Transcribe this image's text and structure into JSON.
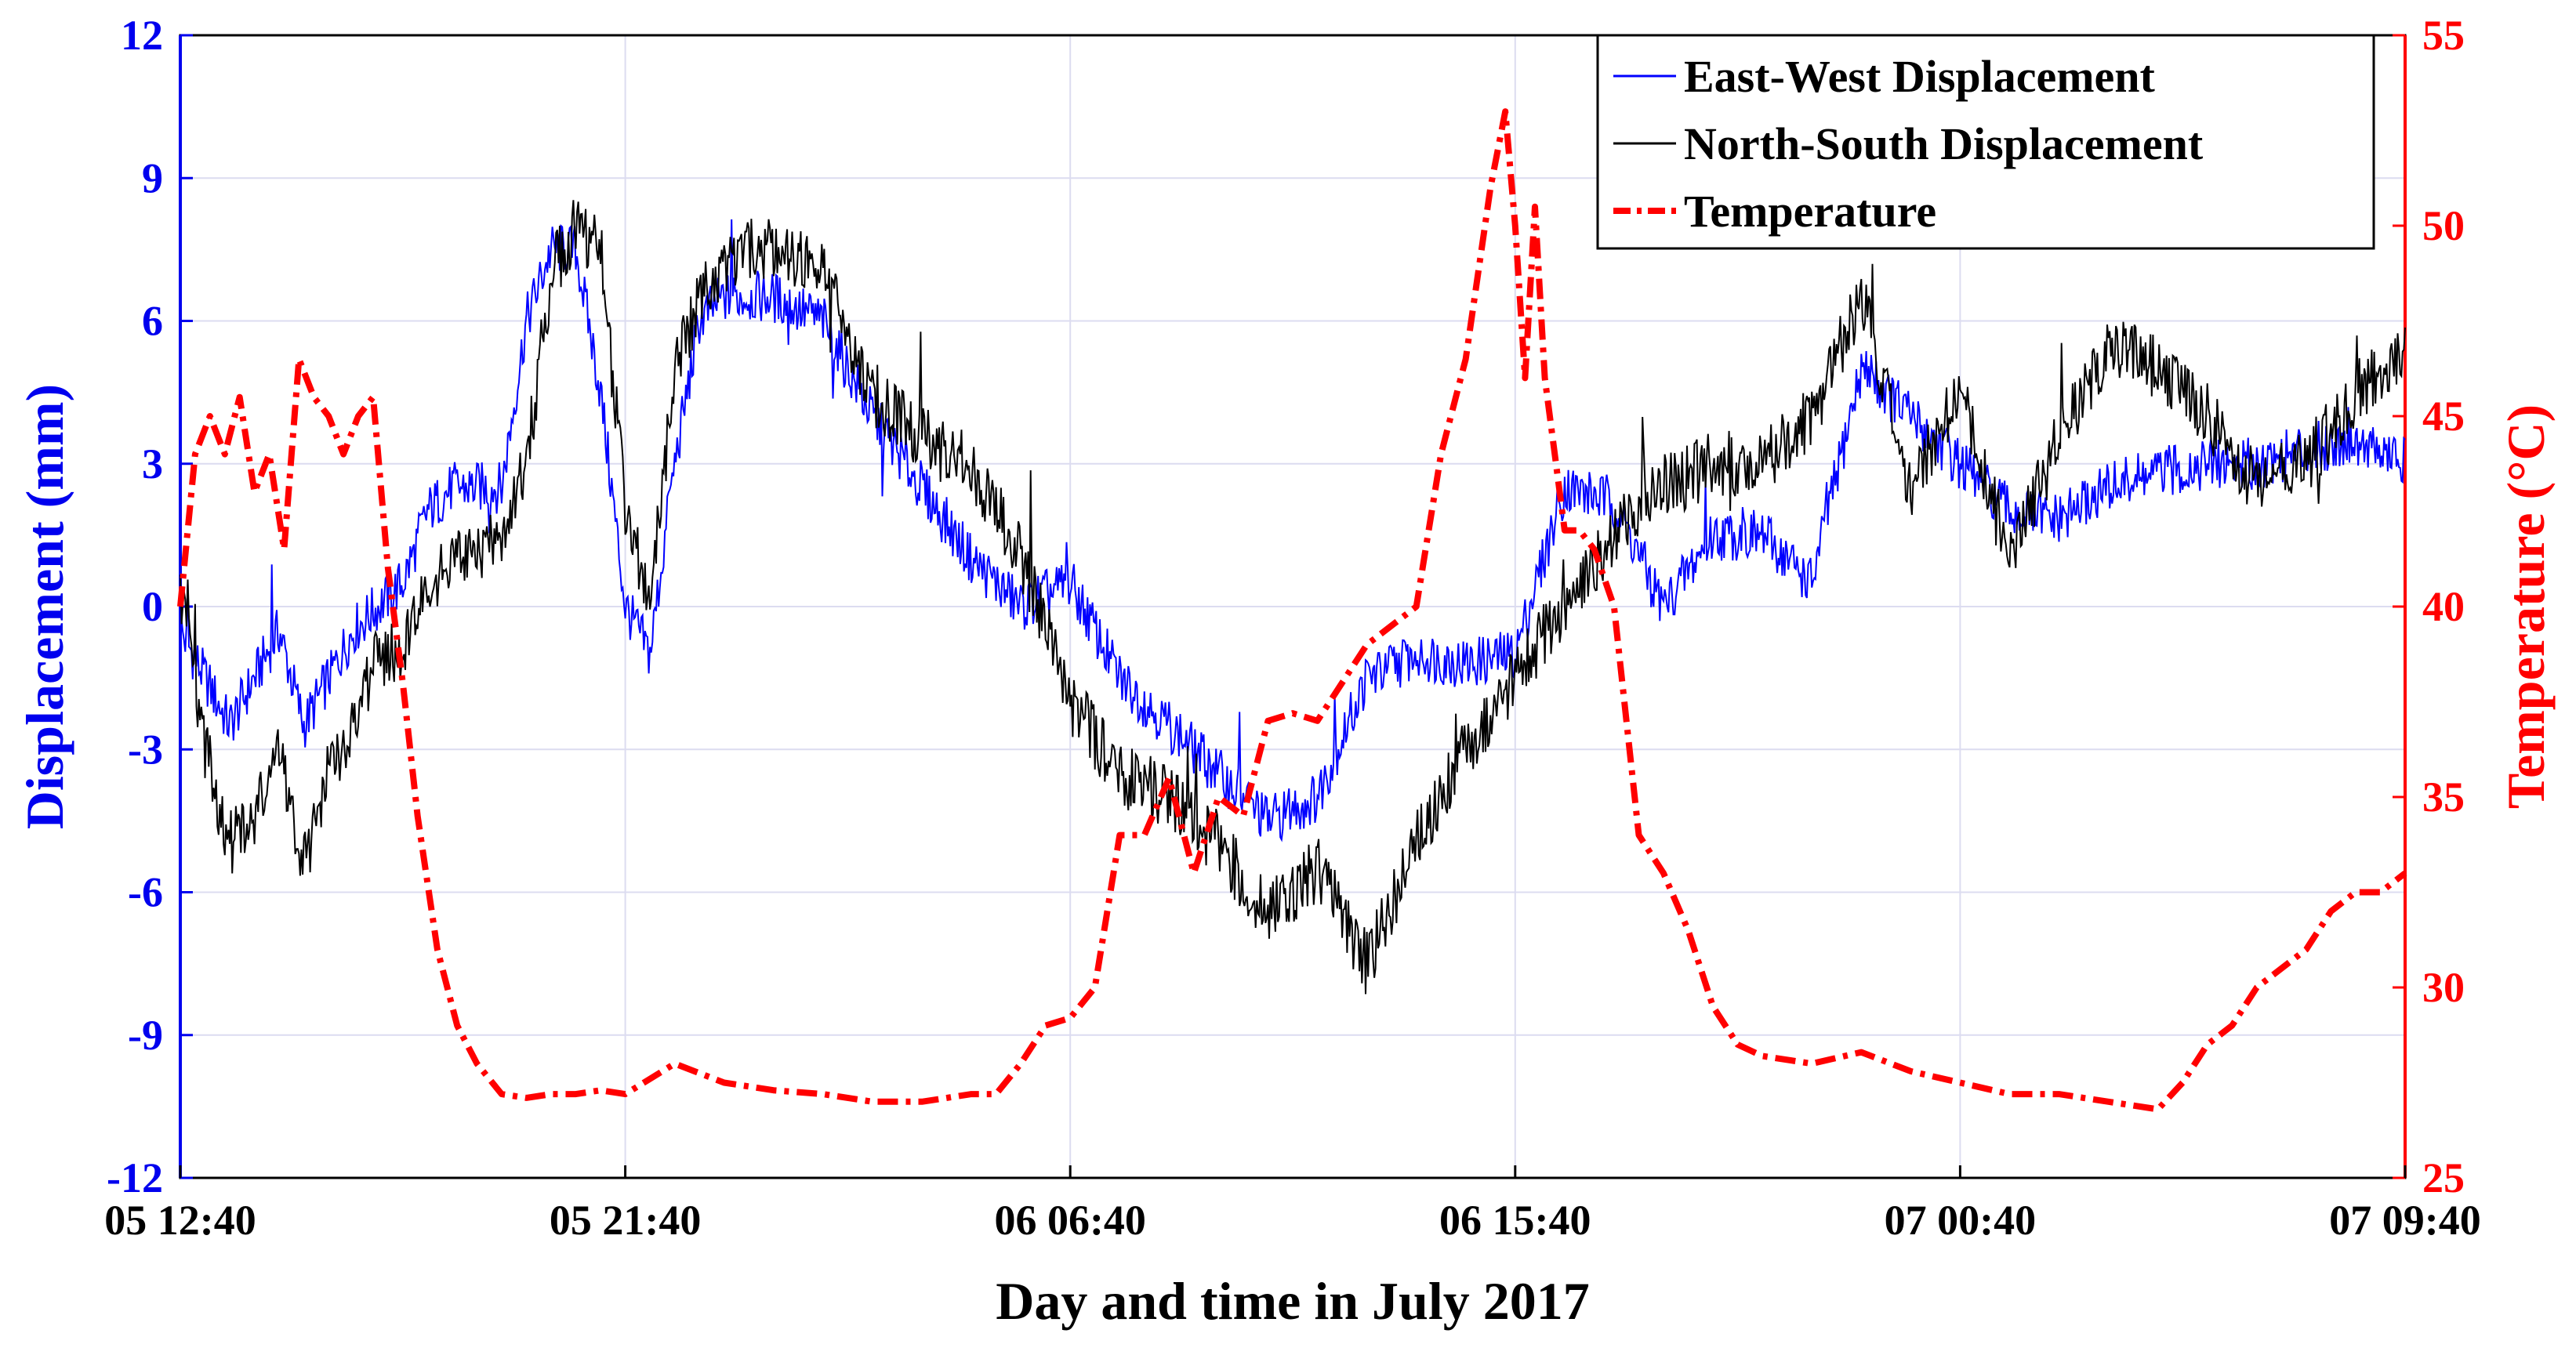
{
  "chart_data": {
    "type": "line",
    "xlabel": "Day and time in July 2017",
    "ylabel_left": "Displacement (mm)",
    "ylabel_right": "Temperature (°C)",
    "x_ticks": [
      "05 12:40",
      "05 21:40",
      "06 06:40",
      "06 15:40",
      "07 00:40",
      "07 09:40"
    ],
    "x_range_hours": [
      0,
      45
    ],
    "ylim_left": [
      -12,
      12
    ],
    "yticks_left": [
      -12,
      -9,
      -6,
      -3,
      0,
      3,
      6,
      9,
      12
    ],
    "ylim_right": [
      25,
      55
    ],
    "yticks_right": [
      25,
      30,
      35,
      40,
      45,
      50,
      55
    ],
    "grid": true,
    "legend_position": "top-right",
    "colors": {
      "left_axis": "#0000ee",
      "right_axis": "#ff0000",
      "grid": "#dcdcf0"
    },
    "series": [
      {
        "name": "East-West Displacement",
        "axis": "left",
        "color": "#0000ff",
        "style": "solid",
        "x": [
          0,
          0.5,
          1,
          1.5,
          2,
          2.5,
          3,
          3.5,
          4,
          4.5,
          5,
          5.5,
          6,
          6.5,
          7,
          7.5,
          8,
          8.5,
          9,
          9.5,
          10,
          10.5,
          11,
          11.5,
          12,
          13,
          14,
          15,
          16,
          17,
          18,
          19,
          20,
          21,
          22,
          23,
          24,
          25,
          26,
          27,
          28,
          29,
          30,
          31,
          32,
          33,
          34,
          35,
          36,
          37,
          38,
          39,
          40,
          41,
          42,
          43,
          44,
          45
        ],
        "y": [
          -0.5,
          -1.5,
          -2.5,
          -1.5,
          -0.5,
          -2.5,
          -1.5,
          -0.5,
          0,
          0.5,
          2,
          2.5,
          2.5,
          2.5,
          6,
          7.5,
          7.5,
          4.5,
          0,
          -1,
          3,
          6,
          6.5,
          6.5,
          6.5,
          6,
          4,
          2.5,
          1,
          0,
          0.5,
          -1.5,
          -2.5,
          -3.5,
          -4.5,
          -4,
          -1.5,
          -1,
          -1.2,
          -1,
          2.5,
          2.2,
          0,
          1.5,
          1.5,
          0.5,
          5,
          4,
          3,
          2,
          1.8,
          2.5,
          2.8,
          3,
          3,
          3.3,
          3.5,
          3
        ]
      },
      {
        "name": "North-South Displacement",
        "axis": "left",
        "color": "#000000",
        "style": "solid",
        "x": [
          0,
          0.5,
          1,
          1.5,
          2,
          2.5,
          3,
          3.5,
          4,
          4.5,
          5,
          5.5,
          6,
          6.5,
          7,
          7.5,
          8,
          8.5,
          9,
          9.5,
          10,
          10.5,
          11,
          11.5,
          12,
          13,
          14,
          15,
          16,
          17,
          18,
          19,
          20,
          21,
          22,
          23,
          24,
          25,
          26,
          27,
          28,
          29,
          30,
          31,
          32,
          33,
          34,
          35,
          36,
          37,
          38,
          39,
          40,
          41,
          42,
          43,
          44,
          45
        ],
        "y": [
          0.2,
          -3,
          -5,
          -4.5,
          -3,
          -5.5,
          -3.5,
          -2.5,
          -1,
          -1,
          0.5,
          1,
          1,
          1.5,
          3,
          7,
          8,
          7.5,
          2,
          0,
          5,
          6.5,
          7,
          7.5,
          7.5,
          7,
          4.5,
          3.5,
          3,
          1,
          -2,
          -3.5,
          -4,
          -5,
          -6.5,
          -5.5,
          -7.5,
          -5,
          -3,
          -1.5,
          0,
          1.5,
          2.5,
          3,
          3,
          4,
          6.5,
          2.5,
          4.5,
          1,
          3.5,
          5.5,
          5,
          4,
          2.5,
          3,
          4.5,
          5.5
        ]
      },
      {
        "name": "Temperature",
        "axis": "right",
        "color": "#ff0000",
        "style": "dashdot",
        "x": [
          0,
          0.3,
          0.6,
          0.9,
          1.2,
          1.5,
          1.8,
          2.1,
          2.4,
          2.7,
          3,
          3.3,
          3.6,
          3.9,
          4.2,
          4.5,
          4.8,
          5.2,
          5.6,
          6,
          6.5,
          7,
          7.5,
          8,
          8.5,
          9,
          10,
          11,
          12,
          13,
          14,
          15,
          16,
          16.5,
          17,
          17.5,
          18,
          18.5,
          19,
          19.5,
          20,
          20.5,
          21,
          21.5,
          22,
          22.5,
          23,
          23.5,
          24,
          24.5,
          25,
          25.5,
          26,
          26.5,
          26.8,
          27,
          27.2,
          27.4,
          27.6,
          27.8,
          28,
          28.3,
          28.6,
          29,
          29.5,
          30,
          30.5,
          31,
          31.5,
          32,
          33,
          34,
          35,
          36,
          37,
          38,
          39,
          40,
          40.5,
          41,
          41.5,
          42,
          42.5,
          43,
          43.5,
          44,
          44.5,
          45
        ],
        "y": [
          40,
          44,
          45,
          44,
          45.5,
          43,
          44,
          41.5,
          46.5,
          45.5,
          45,
          44,
          45,
          45.5,
          41,
          38,
          34.5,
          31,
          29,
          28,
          27.2,
          27.1,
          27.2,
          27.2,
          27.3,
          27.2,
          28,
          27.5,
          27.3,
          27.2,
          27,
          27,
          27.2,
          27.2,
          28,
          29,
          29.2,
          30,
          34,
          34,
          35.5,
          33,
          35,
          34.5,
          37,
          37.2,
          37,
          38,
          39,
          39.5,
          40,
          44,
          46.5,
          51,
          53,
          50,
          46,
          50.5,
          46,
          44,
          42,
          42,
          41.5,
          40,
          34,
          33,
          31.5,
          29.5,
          28.5,
          28.2,
          28,
          28.3,
          27.8,
          27.5,
          27.2,
          27.2,
          27,
          26.8,
          27.5,
          28.5,
          29,
          30,
          30.5,
          31,
          32,
          32.5,
          32.5,
          33
        ]
      }
    ]
  }
}
